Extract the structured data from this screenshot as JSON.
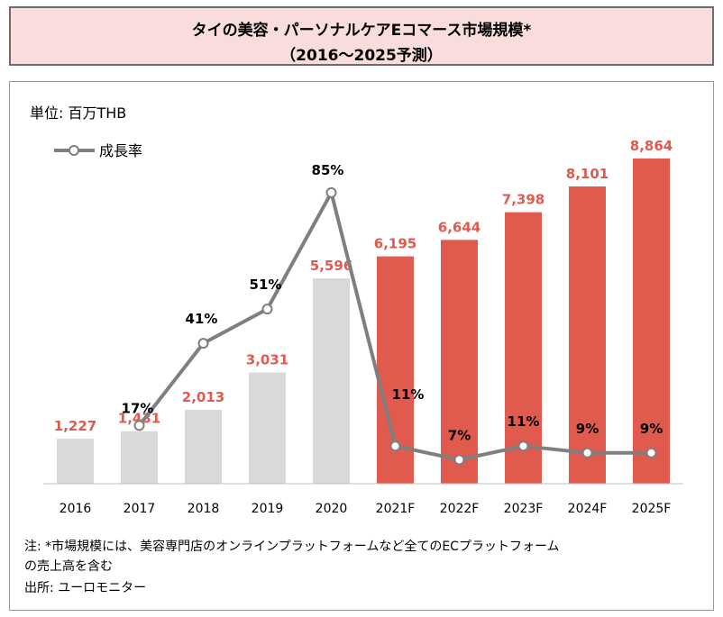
{
  "title": {
    "line1": "タイの美容・パーソナルケアEコマース市場規模*",
    "line2": "（2016～2025予測）"
  },
  "unit_label": "単位: 百万THB",
  "colors": {
    "actual_bar": "#d9d9d9",
    "forecast_bar": "#e05a4e",
    "line": "#7f7f7f",
    "bar_label_actual": "#e05a4e",
    "bar_label_forecast": "#e05a4e"
  },
  "chart_data": {
    "type": "bar",
    "categories": [
      "2016",
      "2017",
      "2018",
      "2019",
      "2020",
      "2021F",
      "2022F",
      "2023F",
      "2024F",
      "2025F"
    ],
    "series": [
      {
        "name": "",
        "values": [
          1227,
          1431,
          2013,
          3031,
          5596,
          6195,
          6644,
          7398,
          8101,
          8864
        ],
        "labels": [
          "1,227",
          "1,431",
          "2,013",
          "3,031",
          "5,596",
          "6,195",
          "6,644",
          "7,398",
          "8,101",
          "8,864"
        ],
        "forecast": [
          false,
          false,
          false,
          false,
          false,
          true,
          true,
          true,
          true,
          true
        ]
      },
      {
        "name": "成長率",
        "type": "line",
        "x": [
          "2017",
          "2018",
          "2019",
          "2020",
          "2021F",
          "2022F",
          "2023F",
          "2024F",
          "2025F"
        ],
        "values": [
          17,
          41,
          51,
          85,
          11,
          7,
          11,
          9,
          9
        ],
        "labels": [
          "17%",
          "41%",
          "51%",
          "85%",
          "11%",
          "7%",
          "11%",
          "9%",
          "9%"
        ]
      }
    ],
    "ylim": [
      0,
      9500
    ],
    "y2lim": [
      0,
      100
    ],
    "legend": "top-left",
    "grid": false
  },
  "notes": {
    "line1": "注: *市場規模には、美容専門店のオンラインプラットフォームなど全てのECプラットフォーム",
    "line2": "の売上高を含む",
    "source": "出所: ユーロモニター"
  }
}
